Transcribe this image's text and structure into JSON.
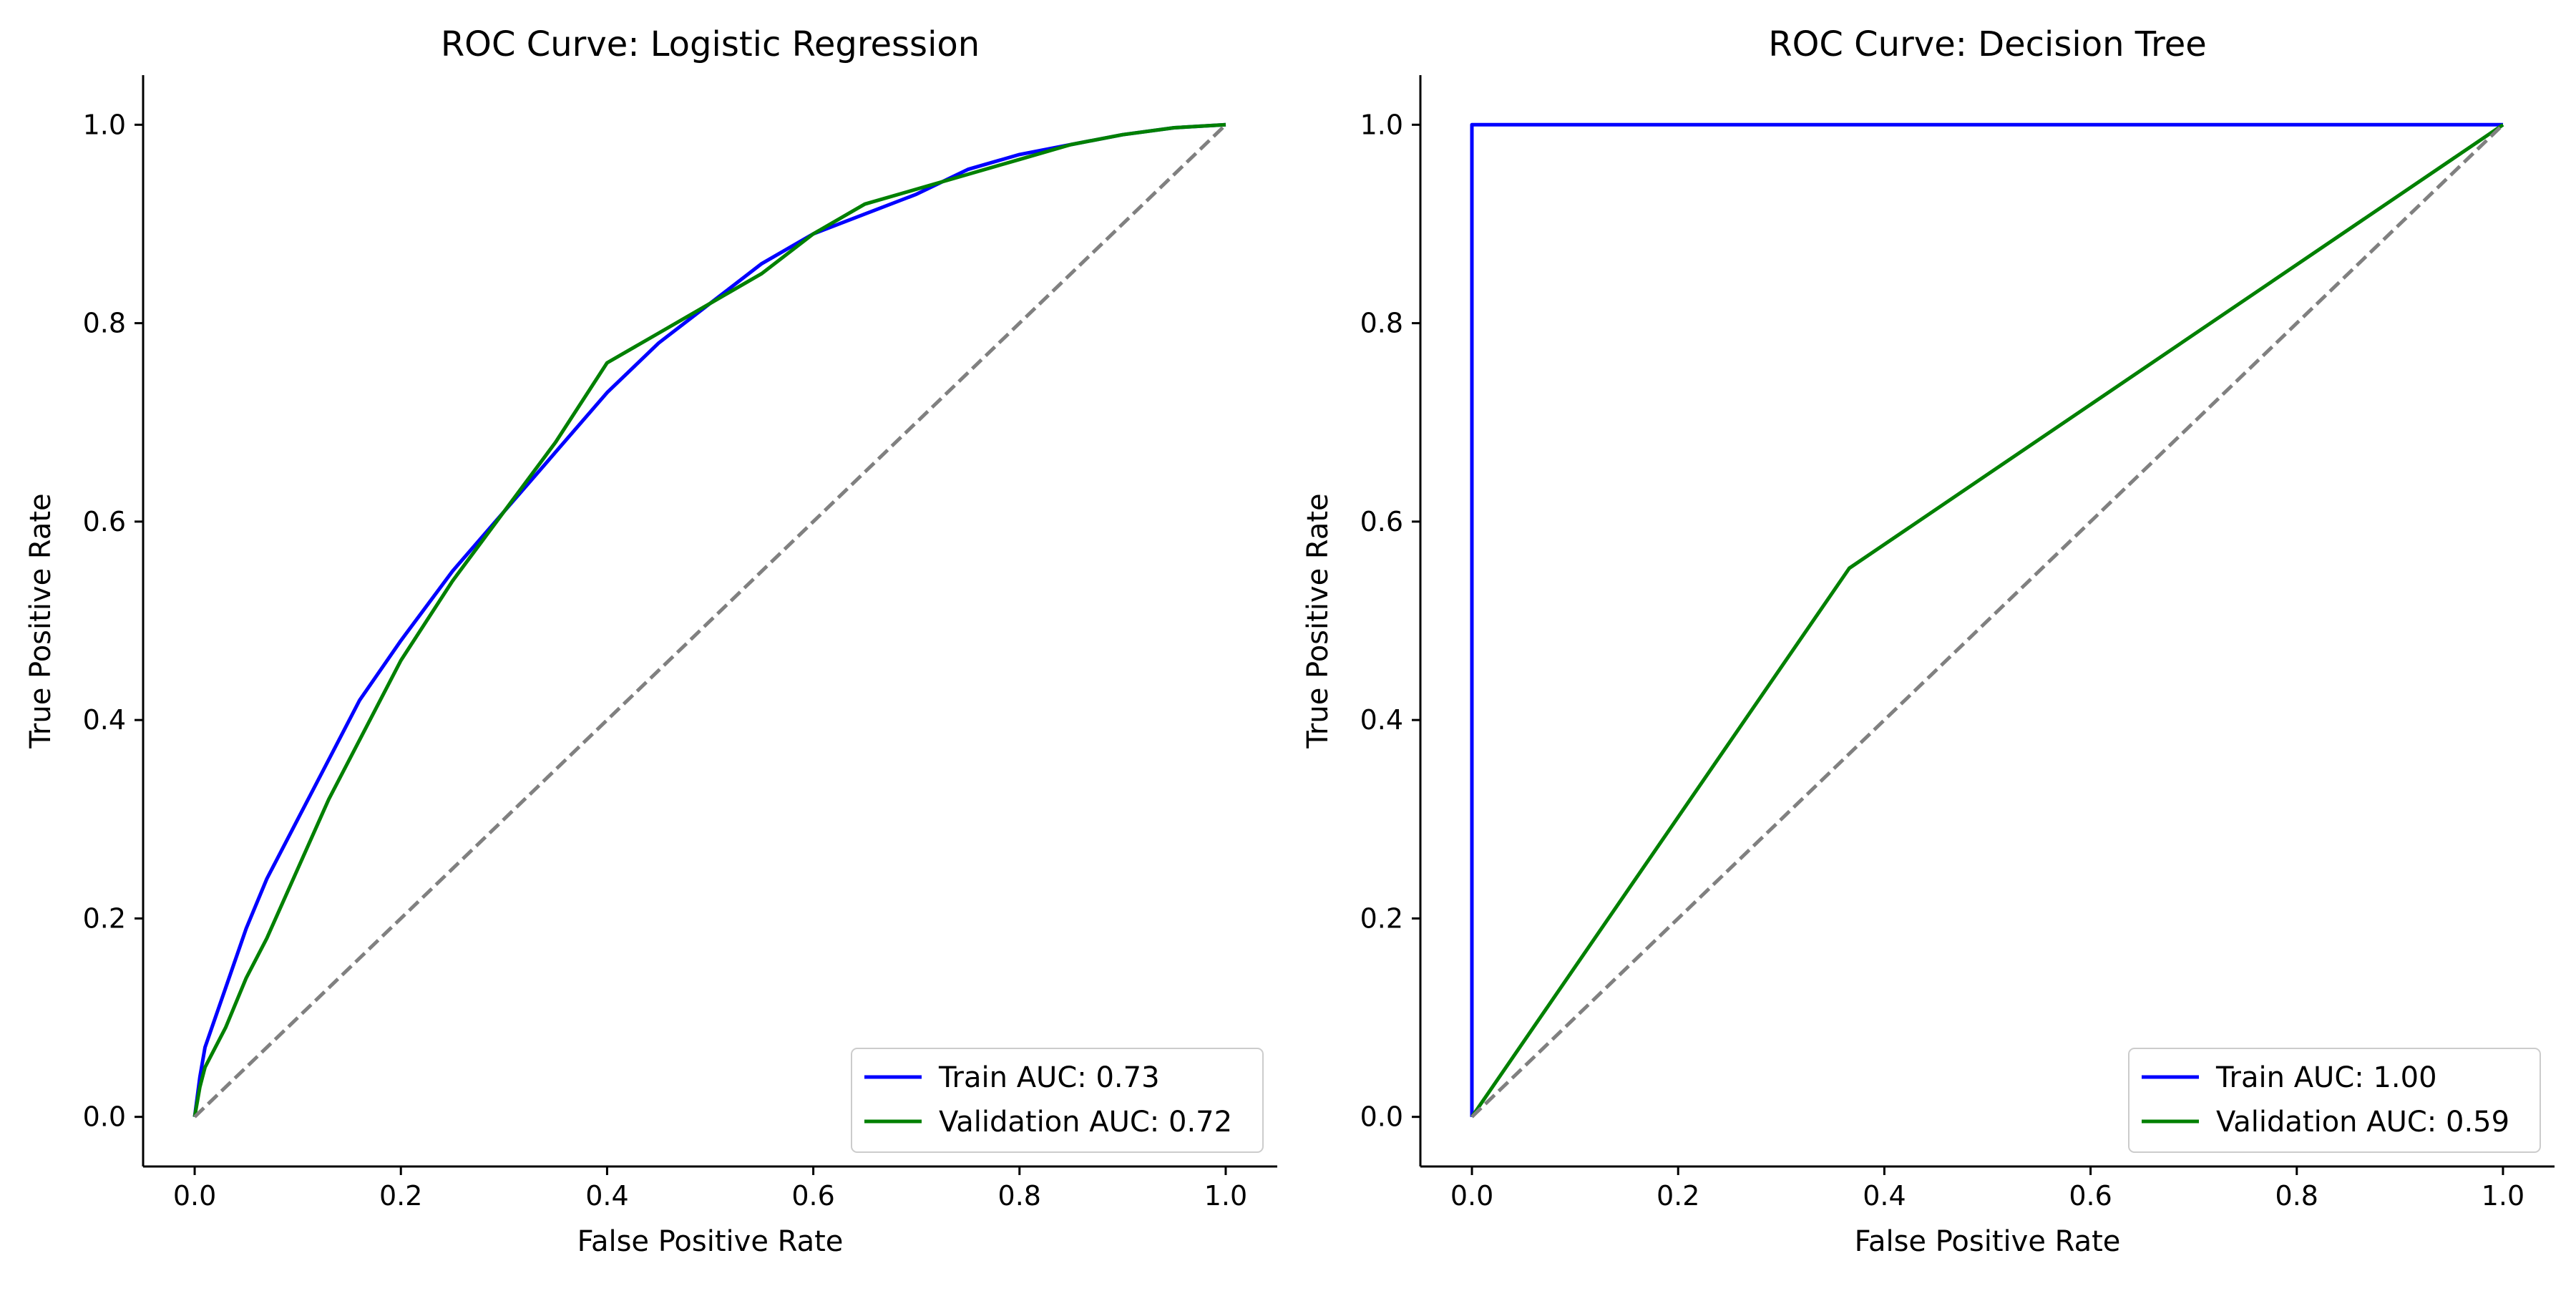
{
  "chart_data": [
    {
      "type": "line",
      "title": "ROC Curve: Logistic Regression",
      "xlabel": "False Positive Rate",
      "ylabel": "True Positive Rate",
      "xlim": [
        -0.05,
        1.05
      ],
      "ylim": [
        -0.05,
        1.05
      ],
      "xticks": [
        "0.0",
        "0.2",
        "0.4",
        "0.6",
        "0.8",
        "1.0"
      ],
      "yticks": [
        "0.0",
        "0.2",
        "0.4",
        "0.6",
        "0.8",
        "1.0"
      ],
      "grid": false,
      "legend_position": "lower right",
      "series": [
        {
          "name": "Train AUC: 0.73",
          "color": "#0000ff",
          "x": [
            0,
            0.005,
            0.01,
            0.02,
            0.03,
            0.05,
            0.07,
            0.1,
            0.13,
            0.16,
            0.2,
            0.25,
            0.3,
            0.35,
            0.4,
            0.45,
            0.5,
            0.55,
            0.6,
            0.65,
            0.7,
            0.75,
            0.8,
            0.85,
            0.9,
            0.95,
            1.0
          ],
          "y": [
            0,
            0.04,
            0.07,
            0.1,
            0.13,
            0.19,
            0.24,
            0.3,
            0.36,
            0.42,
            0.48,
            0.55,
            0.61,
            0.67,
            0.73,
            0.78,
            0.82,
            0.86,
            0.89,
            0.91,
            0.93,
            0.955,
            0.97,
            0.98,
            0.99,
            0.997,
            1.0
          ]
        },
        {
          "name": "Validation AUC: 0.72",
          "color": "#008000",
          "x": [
            0,
            0.005,
            0.01,
            0.02,
            0.03,
            0.05,
            0.07,
            0.1,
            0.13,
            0.16,
            0.2,
            0.25,
            0.3,
            0.35,
            0.4,
            0.45,
            0.5,
            0.55,
            0.6,
            0.65,
            0.7,
            0.75,
            0.8,
            0.85,
            0.9,
            0.95,
            1.0
          ],
          "y": [
            0,
            0.03,
            0.05,
            0.07,
            0.09,
            0.14,
            0.18,
            0.25,
            0.32,
            0.38,
            0.46,
            0.54,
            0.61,
            0.68,
            0.76,
            0.79,
            0.82,
            0.85,
            0.89,
            0.92,
            0.935,
            0.95,
            0.965,
            0.98,
            0.99,
            0.997,
            1.0
          ]
        },
        {
          "color": "#808080",
          "dashed": true,
          "x": [
            0,
            1
          ],
          "y": [
            0,
            1
          ]
        }
      ]
    },
    {
      "type": "line",
      "title": "ROC Curve: Decision Tree",
      "xlabel": "False Positive Rate",
      "ylabel": "True Positive Rate",
      "xlim": [
        -0.05,
        1.05
      ],
      "ylim": [
        -0.05,
        1.05
      ],
      "xticks": [
        "0.0",
        "0.2",
        "0.4",
        "0.6",
        "0.8",
        "1.0"
      ],
      "yticks": [
        "0.0",
        "0.2",
        "0.4",
        "0.6",
        "0.8",
        "1.0"
      ],
      "grid": false,
      "legend_position": "lower right",
      "series": [
        {
          "name": "Train AUC: 1.00",
          "color": "#0000ff",
          "x": [
            0,
            0,
            1
          ],
          "y": [
            0,
            1,
            1
          ]
        },
        {
          "name": "Validation AUC: 0.59",
          "color": "#008000",
          "x": [
            0,
            0.366,
            1
          ],
          "y": [
            0,
            0.553,
            1
          ]
        },
        {
          "color": "#808080",
          "dashed": true,
          "x": [
            0,
            1
          ],
          "y": [
            0,
            1
          ]
        }
      ]
    }
  ]
}
